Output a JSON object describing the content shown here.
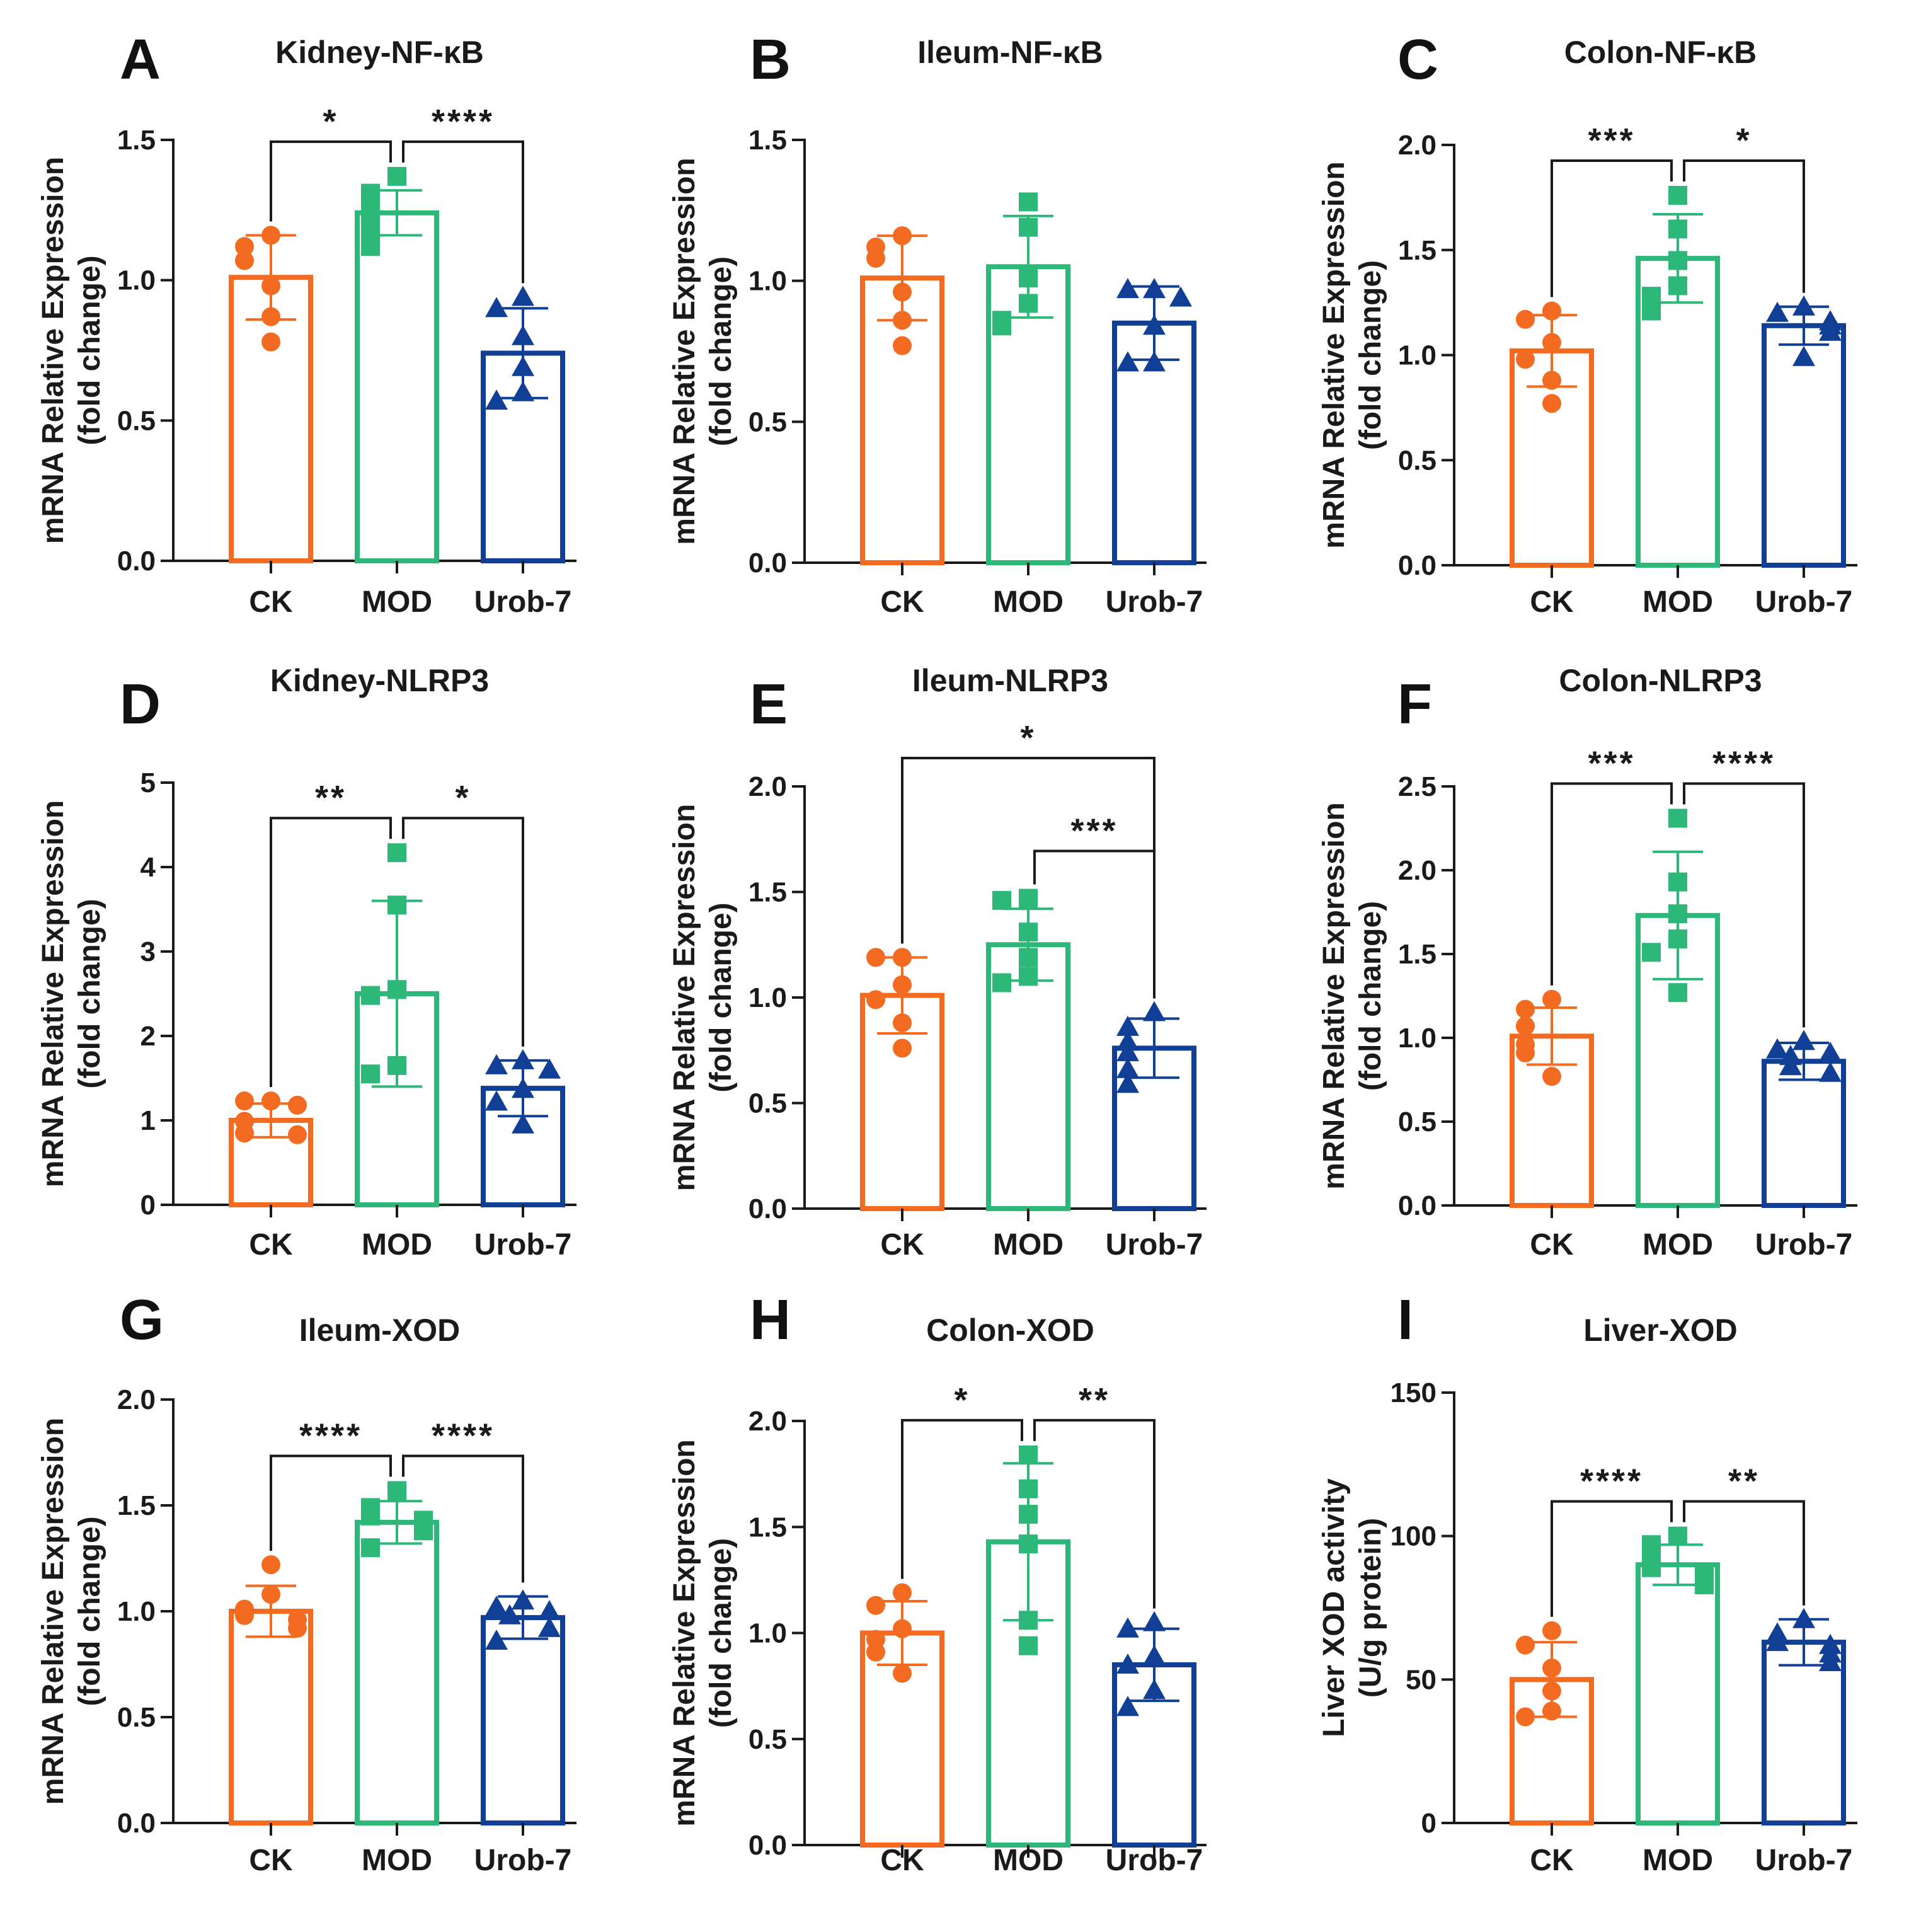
{
  "figure": {
    "background": "#ffffff",
    "axis_color": "#1a1a1a"
  },
  "groups": [
    {
      "name": "CK",
      "color": "#f26b21",
      "marker": "circle"
    },
    {
      "name": "MOD",
      "color": "#2db87a",
      "marker": "square"
    },
    {
      "name": "Urob-7",
      "color": "#123f96",
      "marker": "triangle"
    }
  ],
  "chart_data": [
    {
      "panel": "A",
      "type": "bar",
      "title": "Kidney-NF-κB",
      "categories": [
        "CK",
        "MOD",
        "Urob-7"
      ],
      "ylabel": [
        "mRNA Relative Expression",
        "(fold change)"
      ],
      "ylim": [
        0,
        1.5
      ],
      "yticks": [
        0,
        0.5,
        1.0,
        1.5
      ],
      "ytick_labels": [
        "0.0",
        "0.5",
        "1.0",
        "1.5"
      ],
      "means": [
        1.01,
        1.24,
        0.74
      ],
      "sd": [
        0.15,
        0.08,
        0.16
      ],
      "points": [
        [
          1.16,
          1.12,
          1.07,
          0.98,
          0.87,
          0.78
        ],
        [
          1.37,
          1.31,
          1.25,
          1.23,
          1.17,
          1.12
        ],
        [
          0.94,
          0.9,
          0.8,
          0.69,
          0.6,
          0.57
        ]
      ],
      "significance": [
        {
          "from": 0,
          "to": 1,
          "label": "*",
          "level": 1
        },
        {
          "from": 1,
          "to": 2,
          "label": "****",
          "level": 1
        }
      ]
    },
    {
      "panel": "B",
      "type": "bar",
      "title": "Ileum-NF-κB",
      "categories": [
        "CK",
        "MOD",
        "Urob-7"
      ],
      "ylabel": [
        "mRNA Relative Expression",
        "(fold change)"
      ],
      "ylim": [
        0,
        1.5
      ],
      "yticks": [
        0,
        0.5,
        1.0,
        1.5
      ],
      "ytick_labels": [
        "0.0",
        "0.5",
        "1.0",
        "1.5"
      ],
      "means": [
        1.01,
        1.05,
        0.85
      ],
      "sd": [
        0.15,
        0.18,
        0.13
      ],
      "points": [
        [
          1.16,
          1.12,
          1.08,
          0.96,
          0.86,
          0.77
        ],
        [
          1.28,
          1.19,
          1.01,
          0.92,
          0.86,
          0.84
        ],
        [
          0.97,
          0.97,
          0.94,
          0.84,
          0.71,
          0.71
        ]
      ],
      "significance": []
    },
    {
      "panel": "C",
      "type": "bar",
      "title": "Colon-NF-κB",
      "categories": [
        "CK",
        "MOD",
        "Urob-7"
      ],
      "ylabel": [
        "mRNA Relative Expression",
        "(fold change)"
      ],
      "ylim": [
        0,
        2.0
      ],
      "yticks": [
        0,
        0.5,
        1.0,
        1.5,
        2.0
      ],
      "ytick_labels": [
        "0.0",
        "0.5",
        "1.0",
        "1.5",
        "2.0"
      ],
      "means": [
        1.02,
        1.46,
        1.14
      ],
      "sd": [
        0.17,
        0.21,
        0.09
      ],
      "points": [
        [
          1.21,
          1.17,
          1.06,
          0.98,
          0.88,
          0.77
        ],
        [
          1.76,
          1.6,
          1.45,
          1.33,
          1.28,
          1.21
        ],
        [
          1.23,
          1.2,
          1.16,
          1.14,
          1.11,
          0.99
        ]
      ],
      "significance": [
        {
          "from": 0,
          "to": 1,
          "label": "***",
          "level": 1
        },
        {
          "from": 1,
          "to": 2,
          "label": "*",
          "level": 1
        }
      ]
    },
    {
      "panel": "D",
      "type": "bar",
      "title": "Kidney-NLRP3",
      "categories": [
        "CK",
        "MOD",
        "Urob-7"
      ],
      "ylabel": [
        "mRNA Relative Expression",
        "(fold change)"
      ],
      "ylim": [
        0,
        5
      ],
      "yticks": [
        0,
        1,
        2,
        3,
        4,
        5
      ],
      "ytick_labels": [
        "0",
        "1",
        "2",
        "3",
        "4",
        "5"
      ],
      "means": [
        1.0,
        2.5,
        1.38
      ],
      "sd": [
        0.2,
        1.1,
        0.33
      ],
      "points": [
        [
          1.23,
          1.23,
          1.18,
          0.99,
          0.85,
          0.83
        ],
        [
          4.17,
          3.55,
          2.55,
          2.48,
          1.65,
          1.55
        ],
        [
          1.71,
          1.65,
          1.6,
          1.37,
          1.22,
          0.95
        ]
      ],
      "significance": [
        {
          "from": 0,
          "to": 1,
          "label": "**",
          "level": 1
        },
        {
          "from": 1,
          "to": 2,
          "label": "*",
          "level": 1
        }
      ]
    },
    {
      "panel": "E",
      "type": "bar",
      "title": "Ileum-NLRP3",
      "categories": [
        "CK",
        "MOD",
        "Urob-7"
      ],
      "ylabel": [
        "mRNA Relative Expression",
        "(fold change)"
      ],
      "ylim": [
        0,
        2.0
      ],
      "yticks": [
        0,
        0.5,
        1.0,
        1.5,
        2.0
      ],
      "ytick_labels": [
        "0.0",
        "0.5",
        "1.0",
        "1.5",
        "2.0"
      ],
      "means": [
        1.01,
        1.25,
        0.76
      ],
      "sd": [
        0.18,
        0.17,
        0.14
      ],
      "points": [
        [
          1.19,
          1.19,
          1.06,
          0.99,
          0.88,
          0.76
        ],
        [
          1.47,
          1.46,
          1.31,
          1.19,
          1.1,
          1.07
        ],
        [
          0.93,
          0.86,
          0.79,
          0.74,
          0.66,
          0.59
        ]
      ],
      "significance": [
        {
          "from": 1,
          "to": 2,
          "label": "***",
          "level": 1
        },
        {
          "from": 0,
          "to": 2,
          "label": "*",
          "level": 2
        }
      ]
    },
    {
      "panel": "F",
      "type": "bar",
      "title": "Colon-NLRP3",
      "categories": [
        "CK",
        "MOD",
        "Urob-7"
      ],
      "ylabel": [
        "mRNA Relative Expression",
        "(fold change)"
      ],
      "ylim": [
        0,
        2.5
      ],
      "yticks": [
        0,
        0.5,
        1.0,
        1.5,
        2.0,
        2.5
      ],
      "ytick_labels": [
        "0.0",
        "0.5",
        "1.0",
        "1.5",
        "2.0",
        "2.5"
      ],
      "means": [
        1.01,
        1.73,
        0.86
      ],
      "sd": [
        0.17,
        0.38,
        0.11
      ],
      "points": [
        [
          1.23,
          1.17,
          1.07,
          0.96,
          0.91,
          0.77
        ],
        [
          2.31,
          1.93,
          1.74,
          1.59,
          1.51,
          1.27
        ],
        [
          0.98,
          0.93,
          0.91,
          0.89,
          0.83,
          0.79
        ]
      ],
      "significance": [
        {
          "from": 0,
          "to": 1,
          "label": "***",
          "level": 1
        },
        {
          "from": 1,
          "to": 2,
          "label": "****",
          "level": 1
        }
      ]
    },
    {
      "panel": "G",
      "type": "bar",
      "title": "Ileum-XOD",
      "categories": [
        "CK",
        "MOD",
        "Urob-7"
      ],
      "ylabel": [
        "mRNA Relative Expression",
        "(fold change)"
      ],
      "ylim": [
        0,
        2.0
      ],
      "yticks": [
        0,
        0.5,
        1.0,
        1.5,
        2.0
      ],
      "ytick_labels": [
        "0.0",
        "0.5",
        "1.0",
        "1.5",
        "2.0"
      ],
      "means": [
        1.0,
        1.42,
        0.97
      ],
      "sd": [
        0.12,
        0.1,
        0.1
      ],
      "points": [
        [
          1.22,
          1.08,
          1.01,
          0.98,
          0.96,
          0.92
        ],
        [
          1.57,
          1.49,
          1.45,
          1.43,
          1.38,
          1.3
        ],
        [
          1.05,
          1.02,
          1.0,
          0.98,
          0.92,
          0.86
        ]
      ],
      "significance": [
        {
          "from": 0,
          "to": 1,
          "label": "****",
          "level": 1
        },
        {
          "from": 1,
          "to": 2,
          "label": "****",
          "level": 1
        }
      ]
    },
    {
      "panel": "H",
      "type": "bar",
      "title": "Colon-XOD",
      "categories": [
        "CK",
        "MOD",
        "Urob-7"
      ],
      "ylabel": [
        "mRNA Relative Expression",
        "(fold change)"
      ],
      "ylim": [
        0,
        2.0
      ],
      "yticks": [
        0,
        0.5,
        1.0,
        1.5,
        2.0
      ],
      "ytick_labels": [
        "0.0",
        "0.5",
        "1.0",
        "1.5",
        "2.0"
      ],
      "means": [
        1.0,
        1.43,
        0.85
      ],
      "sd": [
        0.15,
        0.37,
        0.17
      ],
      "points": [
        [
          1.19,
          1.13,
          1.02,
          0.97,
          0.91,
          0.81
        ],
        [
          1.84,
          1.68,
          1.56,
          1.42,
          1.06,
          0.94
        ],
        [
          1.05,
          1.02,
          0.89,
          0.85,
          0.73,
          0.65
        ]
      ],
      "significance": [
        {
          "from": 0,
          "to": 1,
          "label": "*",
          "level": 1
        },
        {
          "from": 1,
          "to": 2,
          "label": "**",
          "level": 1
        }
      ]
    },
    {
      "panel": "I",
      "type": "bar",
      "title": "Liver-XOD",
      "categories": [
        "CK",
        "MOD",
        "Urob-7"
      ],
      "ylabel": [
        "Liver XOD activity",
        "(U/g protein)"
      ],
      "ylim": [
        0,
        150
      ],
      "yticks": [
        0,
        50,
        100,
        150
      ],
      "ytick_labels": [
        "0",
        "50",
        "100",
        "150"
      ],
      "means": [
        50,
        90,
        63
      ],
      "sd": [
        13,
        7,
        8
      ],
      "points": [
        [
          67,
          62,
          54,
          46,
          39,
          37
        ],
        [
          100,
          97,
          92,
          89,
          86,
          83
        ],
        [
          71,
          66,
          63,
          62,
          59,
          56
        ]
      ],
      "significance": [
        {
          "from": 0,
          "to": 1,
          "label": "****",
          "level": 1
        },
        {
          "from": 1,
          "to": 2,
          "label": "**",
          "level": 1
        }
      ]
    }
  ]
}
